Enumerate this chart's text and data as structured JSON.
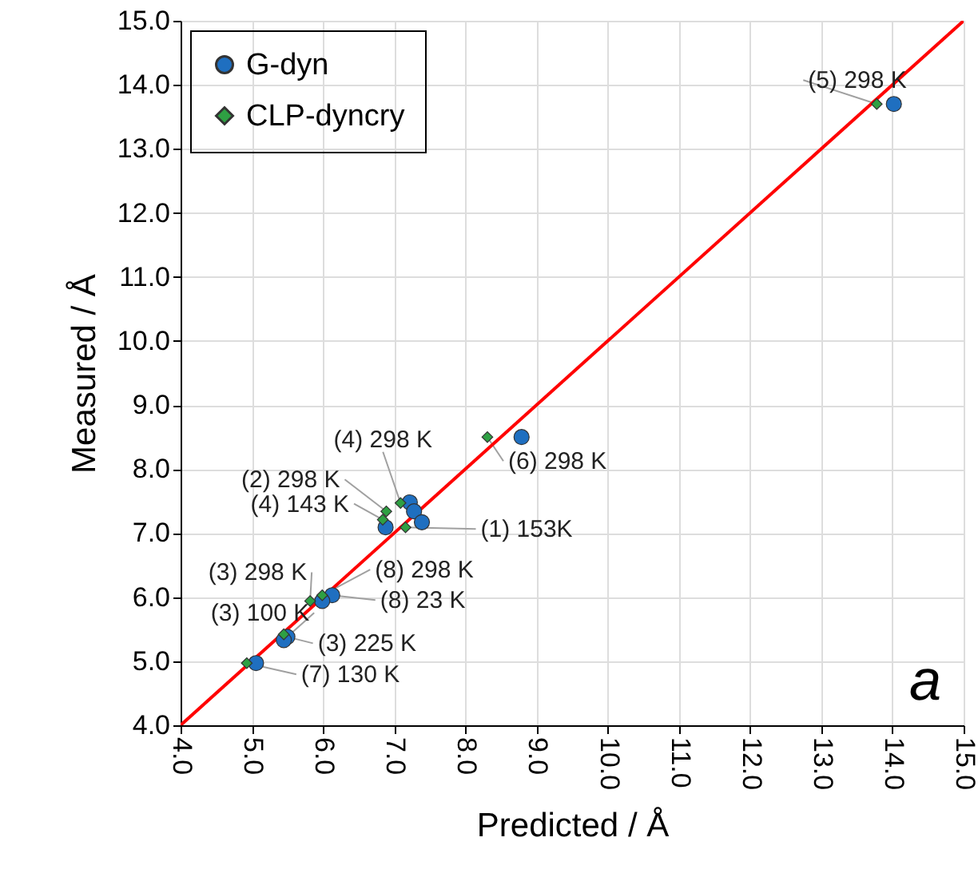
{
  "chart_data": {
    "type": "scatter",
    "xlabel": "Predicted / Å",
    "ylabel": "Measured / Å",
    "xlim": [
      4,
      15
    ],
    "ylim": [
      4,
      15
    ],
    "xticks": [
      {
        "value": 4,
        "label": "4.0"
      },
      {
        "value": 5,
        "label": "5.0"
      },
      {
        "value": 6,
        "label": "6.0"
      },
      {
        "value": 7,
        "label": "7.0"
      },
      {
        "value": 8,
        "label": "8.0"
      },
      {
        "value": 9,
        "label": "9.0"
      },
      {
        "value": 10,
        "label": "10.0"
      },
      {
        "value": 11,
        "label": "11.0"
      },
      {
        "value": 12,
        "label": "12.0"
      },
      {
        "value": 13,
        "label": "13.0"
      },
      {
        "value": 14,
        "label": "14.0"
      },
      {
        "value": 15,
        "label": "15.0"
      }
    ],
    "yticks": [
      {
        "value": 4,
        "label": "4.0"
      },
      {
        "value": 5,
        "label": "5.0"
      },
      {
        "value": 6,
        "label": "6.0"
      },
      {
        "value": 7,
        "label": "7.0"
      },
      {
        "value": 8,
        "label": "8.0"
      },
      {
        "value": 9,
        "label": "9.0"
      },
      {
        "value": 10,
        "label": "10.0"
      },
      {
        "value": 11,
        "label": "11.0"
      },
      {
        "value": 12,
        "label": "12.0"
      },
      {
        "value": 13,
        "label": "13.0"
      },
      {
        "value": 14,
        "label": "14.0"
      },
      {
        "value": 15,
        "label": "15.0"
      }
    ],
    "grid": true,
    "legend": "top left",
    "series": [
      {
        "name": "G-dyn",
        "marker": "circle",
        "color": "#1f6fc0",
        "x": [
          14.02,
          8.79,
          7.22,
          7.28,
          7.39,
          6.88,
          6.13,
          5.99,
          5.5,
          5.45,
          5.06
        ],
        "values": [
          13.7,
          8.5,
          7.48,
          7.34,
          7.17,
          7.09,
          6.03,
          5.94,
          5.38,
          5.33,
          4.97
        ]
      },
      {
        "name": "CLP-dyncry",
        "marker": "diamond",
        "color": "#2ea043",
        "x": [
          13.78,
          8.31,
          7.09,
          6.89,
          6.84,
          7.16,
          5.82,
          5.99,
          5.45,
          4.93
        ],
        "values": [
          13.7,
          8.5,
          7.47,
          7.34,
          7.21,
          7.09,
          5.94,
          6.03,
          5.42,
          4.97
        ]
      },
      {
        "type": "line",
        "marker": "none",
        "color": "#ff0000",
        "x": [
          4,
          15
        ],
        "values": [
          4,
          15
        ]
      }
    ],
    "annotations": [
      {
        "text": "(5) 298 K",
        "x": 13.78,
        "y": 13.7
      },
      {
        "text": "(6) 298 K",
        "x": 8.31,
        "y": 8.5
      },
      {
        "text": "(4) 298 K",
        "x": 7.09,
        "y": 7.47
      },
      {
        "text": "(2) 298 K",
        "x": 6.89,
        "y": 7.34
      },
      {
        "text": "(4) 143 K",
        "x": 6.84,
        "y": 7.21
      },
      {
        "text": "(1) 153K",
        "x": 7.16,
        "y": 7.09
      },
      {
        "text": "(3) 298 K",
        "x": 5.82,
        "y": 5.94
      },
      {
        "text": "(8) 298 K",
        "x": 5.99,
        "y": 6.03
      },
      {
        "text": "(3) 100 K",
        "x": 5.45,
        "y": 5.33
      },
      {
        "text": "(8) 23 K",
        "x": 6.13,
        "y": 6.03
      },
      {
        "text": "(3) 225 K",
        "x": 5.5,
        "y": 5.38
      },
      {
        "text": "(7) 130 K",
        "x": 4.93,
        "y": 4.97
      },
      "a"
    ]
  }
}
